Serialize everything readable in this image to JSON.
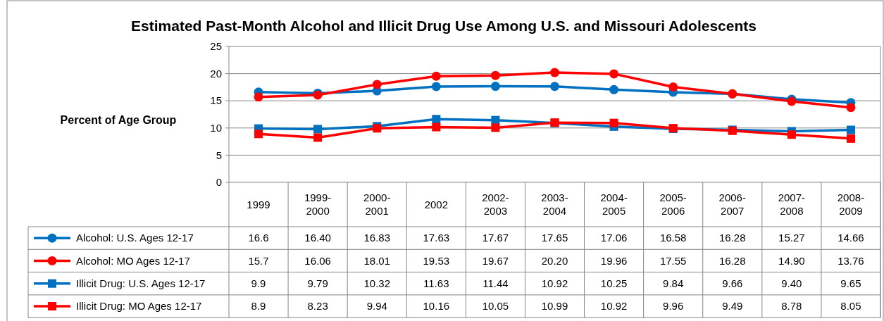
{
  "chart_data": {
    "type": "line",
    "title": "Estimated Past-Month Alcohol and Illicit Drug Use Among U.S. and Missouri Adolescents",
    "ylabel": "Percent of Age Group",
    "categories": [
      "1999",
      "1999-2000",
      "2000-2001",
      "2002",
      "2002-2003",
      "2003-2004",
      "2004-2005",
      "2005-2006",
      "2006-2007",
      "2007-2008",
      "2008-2009"
    ],
    "ylim": [
      0,
      25
    ],
    "yticks": [
      0,
      5,
      10,
      15,
      20,
      25
    ],
    "grid": "y",
    "legend": "bottom left",
    "series": [
      {
        "name": "Alcohol: U.S. Ages 12-17",
        "color": "#0070c0",
        "marker": "circle",
        "values": [
          16.6,
          16.4,
          16.83,
          17.63,
          17.67,
          17.65,
          17.06,
          16.58,
          16.28,
          15.27,
          14.66
        ],
        "value_labels": [
          "16.6",
          "16.40",
          "16.83",
          "17.63",
          "17.67",
          "17.65",
          "17.06",
          "16.58",
          "16.28",
          "15.27",
          "14.66"
        ]
      },
      {
        "name": "Alcohol: MO Ages 12-17",
        "color": "#ff0000",
        "marker": "circle",
        "values": [
          15.7,
          16.06,
          18.01,
          19.53,
          19.67,
          20.2,
          19.96,
          17.55,
          16.28,
          14.9,
          13.76
        ],
        "value_labels": [
          "15.7",
          "16.06",
          "18.01",
          "19.53",
          "19.67",
          "20.20",
          "19.96",
          "17.55",
          "16.28",
          "14.90",
          "13.76"
        ]
      },
      {
        "name": "Illicit Drug: U.S. Ages 12-17",
        "color": "#0070c0",
        "marker": "square",
        "values": [
          9.9,
          9.79,
          10.32,
          11.63,
          11.44,
          10.92,
          10.25,
          9.84,
          9.66,
          9.4,
          9.65
        ],
        "value_labels": [
          "9.9",
          "9.79",
          "10.32",
          "11.63",
          "11.44",
          "10.92",
          "10.25",
          "9.84",
          "9.66",
          "9.40",
          "9.65"
        ]
      },
      {
        "name": "Illicit Drug: MO Ages 12-17",
        "color": "#ff0000",
        "marker": "square",
        "values": [
          8.9,
          8.23,
          9.94,
          10.16,
          10.05,
          10.99,
          10.92,
          9.96,
          9.49,
          8.78,
          8.05
        ],
        "value_labels": [
          "8.9",
          "8.23",
          "9.94",
          "10.16",
          "10.05",
          "10.99",
          "10.92",
          "9.96",
          "9.49",
          "8.78",
          "8.05"
        ]
      }
    ]
  }
}
